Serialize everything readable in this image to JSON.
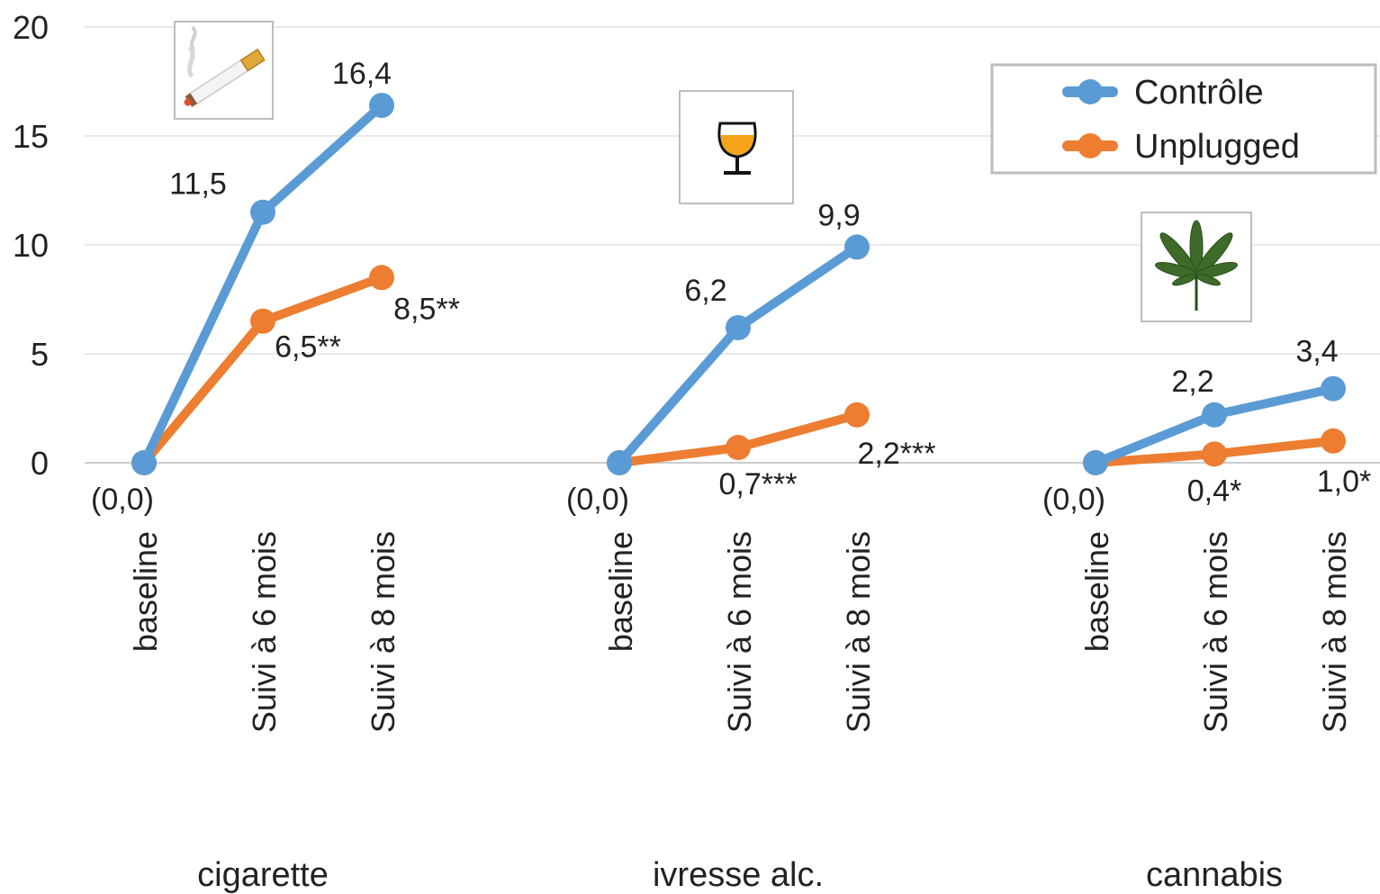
{
  "chart_data": {
    "type": "line",
    "ylim": [
      0,
      20
    ],
    "yticks": [
      0,
      5,
      10,
      15,
      20
    ],
    "grid": true,
    "legend_position": "top-right",
    "x_tick_labels": [
      "baseline",
      "Suivi à 6 mois",
      "Suivi à 8 mois"
    ],
    "groups": [
      {
        "name": "cigarette",
        "icon": "cigarette-icon",
        "baseline_label": "(0,0)",
        "series": [
          {
            "name": "Contrôle",
            "color": "#5b9bd5",
            "values": [
              0,
              11.5,
              16.4
            ],
            "labels": [
              "",
              "11,5",
              "16,4"
            ]
          },
          {
            "name": "Unplugged",
            "color": "#ed7d31",
            "values": [
              0,
              6.5,
              8.5
            ],
            "labels": [
              "",
              "6,5**",
              "8,5**"
            ]
          }
        ]
      },
      {
        "name": "ivresse alc.",
        "icon": "wine-glass-icon",
        "baseline_label": "(0,0)",
        "series": [
          {
            "name": "Contrôle",
            "color": "#5b9bd5",
            "values": [
              0,
              6.2,
              9.9
            ],
            "labels": [
              "",
              "6,2",
              "9,9"
            ]
          },
          {
            "name": "Unplugged",
            "color": "#ed7d31",
            "values": [
              0,
              0.7,
              2.2
            ],
            "labels": [
              "",
              "0,7***",
              "2,2***"
            ]
          }
        ]
      },
      {
        "name": "cannabis",
        "icon": "cannabis-leaf-icon",
        "baseline_label": "(0,0)",
        "series": [
          {
            "name": "Contrôle",
            "color": "#5b9bd5",
            "values": [
              0,
              2.2,
              3.4
            ],
            "labels": [
              "",
              "2,2",
              "3,4"
            ]
          },
          {
            "name": "Unplugged",
            "color": "#ed7d31",
            "values": [
              0,
              0.4,
              1.0
            ],
            "labels": [
              "",
              "0,4*",
              "1,0*"
            ]
          }
        ]
      }
    ],
    "legend": [
      {
        "name": "Contrôle",
        "color": "#5b9bd5"
      },
      {
        "name": "Unplugged",
        "color": "#ed7d31"
      }
    ]
  }
}
